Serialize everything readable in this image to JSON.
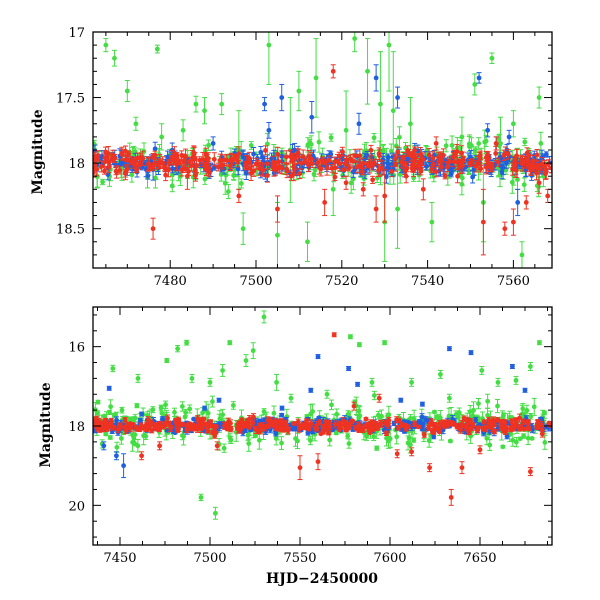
{
  "xaxis_title": "HJD−2450000",
  "chart_data": [
    {
      "type": "scatter",
      "panel": "top",
      "title": "",
      "xlabel": "",
      "ylabel": "Magnitude",
      "xlim": [
        7462,
        7569
      ],
      "ylim": [
        18.8,
        17.0
      ],
      "y_inverted": true,
      "xticks": [
        7480,
        7500,
        7520,
        7540,
        7560
      ],
      "yticks": [
        17,
        17.5,
        18,
        18.5
      ],
      "ytick_labels": [
        "17",
        "17.5",
        "18",
        "18.5"
      ],
      "baseline": 18.0,
      "series": [
        {
          "name": "green band",
          "color": "#44dd44",
          "scatter": 0.12,
          "count": 220,
          "outliers": [
            [
              7465,
              17.1,
              0.05
            ],
            [
              7467,
              17.2,
              0.06
            ],
            [
              7470,
              17.45,
              0.08
            ],
            [
              7472,
              17.7,
              0.05
            ],
            [
              7477,
              17.13,
              0.03
            ],
            [
              7478,
              17.8,
              0.1
            ],
            [
              7483,
              17.75,
              0.08
            ],
            [
              7486,
              17.55,
              0.06
            ],
            [
              7488,
              17.6,
              0.1
            ],
            [
              7492,
              17.55,
              0.08
            ],
            [
              7496,
              17.9,
              0.3
            ],
            [
              7497,
              18.5,
              0.12
            ],
            [
              7503,
              17.1,
              0.3
            ],
            [
              7505,
              18.55,
              0.25
            ],
            [
              7508,
              17.9,
              0.4
            ],
            [
              7510,
              17.45,
              0.15
            ],
            [
              7512,
              18.6,
              0.15
            ],
            [
              7514,
              17.35,
              0.3
            ],
            [
              7518,
              18.2,
              0.2
            ],
            [
              7521,
              17.75,
              0.3
            ],
            [
              7523,
              17.05,
              0.1
            ],
            [
              7526,
              17.3,
              0.25
            ],
            [
              7529,
              17.55,
              0.4
            ],
            [
              7530,
              18.45,
              0.3
            ],
            [
              7531,
              17.1,
              0.35
            ],
            [
              7532,
              17.6,
              0.45
            ],
            [
              7533,
              18.35,
              0.3
            ],
            [
              7536,
              17.7,
              0.2
            ],
            [
              7541,
              18.45,
              0.15
            ],
            [
              7548,
              17.8,
              0.15
            ],
            [
              7551,
              17.4,
              0.08
            ],
            [
              7553,
              18.3,
              0.3
            ],
            [
              7555,
              17.2,
              0.04
            ],
            [
              7557,
              17.85,
              0.2
            ],
            [
              7560,
              17.7,
              0.1
            ],
            [
              7562,
              18.7,
              0.1
            ],
            [
              7566,
              17.5,
              0.08
            ],
            [
              7567,
              18.1,
              0.08
            ]
          ]
        },
        {
          "name": "blue band",
          "color": "#1f5fe0",
          "scatter": 0.06,
          "count": 280,
          "outliers": [
            [
              7476,
              18.05,
              0.08
            ],
            [
              7490,
              17.85,
              0.05
            ],
            [
              7497,
              17.95,
              0.05
            ],
            [
              7502,
              17.55,
              0.05
            ],
            [
              7503,
              17.75,
              0.06
            ],
            [
              7506,
              17.5,
              0.1
            ],
            [
              7509,
              17.9,
              0.05
            ],
            [
              7513,
              17.65,
              0.12
            ],
            [
              7520,
              17.95,
              0.05
            ],
            [
              7524,
              17.7,
              0.08
            ],
            [
              7528,
              17.35,
              0.1
            ],
            [
              7533,
              17.5,
              0.08
            ],
            [
              7537,
              17.9,
              0.05
            ],
            [
              7543,
              18.05,
              0.05
            ],
            [
              7546,
              17.95,
              0.04
            ],
            [
              7552,
              17.35,
              0.04
            ],
            [
              7554,
              17.75,
              0.05
            ],
            [
              7556,
              17.85,
              0.05
            ],
            [
              7559,
              17.8,
              0.05
            ],
            [
              7561,
              18.3,
              0.1
            ],
            [
              7563,
              18.05,
              0.05
            ]
          ]
        },
        {
          "name": "red band",
          "color": "#ee3322",
          "scatter": 0.06,
          "count": 300,
          "outliers": [
            [
              7476,
              18.5,
              0.08
            ],
            [
              7484,
              18.1,
              0.1
            ],
            [
              7496,
              18.25,
              0.05
            ],
            [
              7505,
              18.35,
              0.1
            ],
            [
              7508,
              17.95,
              0.05
            ],
            [
              7511,
              17.95,
              0.05
            ],
            [
              7516,
              18.3,
              0.1
            ],
            [
              7518,
              17.3,
              0.05
            ],
            [
              7521,
              18.15,
              0.05
            ],
            [
              7525,
              18.2,
              0.05
            ],
            [
              7528,
              18.35,
              0.1
            ],
            [
              7530,
              18.25,
              0.2
            ],
            [
              7535,
              18.1,
              0.05
            ],
            [
              7539,
              18.2,
              0.08
            ],
            [
              7542,
              17.85,
              0.05
            ],
            [
              7547,
              18.1,
              0.05
            ],
            [
              7553,
              18.45,
              0.25
            ],
            [
              7556,
              17.85,
              0.05
            ],
            [
              7558,
              18.5,
              0.05
            ],
            [
              7560,
              18.45,
              0.1
            ],
            [
              7563,
              18.3,
              0.05
            ],
            [
              7566,
              18.15,
              0.08
            ],
            [
              7568,
              18.25,
              0.05
            ]
          ]
        }
      ]
    },
    {
      "type": "scatter",
      "panel": "bottom",
      "title": "",
      "xlabel": "HJD−2450000",
      "ylabel": "Magnitude",
      "xlim": [
        7435,
        7690
      ],
      "ylim": [
        21.0,
        15.0
      ],
      "y_inverted": true,
      "xticks": [
        7450,
        7500,
        7550,
        7600,
        7650
      ],
      "yticks": [
        16,
        18,
        20
      ],
      "ytick_labels": [
        "16",
        "18",
        "20"
      ],
      "baseline": 18.0,
      "series": [
        {
          "name": "green band",
          "color": "#44dd44",
          "scatter": 0.35,
          "count": 330,
          "outliers": [
            [
              7446,
              16.55,
              0.08
            ],
            [
              7460,
              16.8,
              0.1
            ],
            [
              7476,
              16.35,
              0.05
            ],
            [
              7482,
              16.05,
              0.08
            ],
            [
              7487,
              15.9,
              0.06
            ],
            [
              7490,
              16.8,
              0.1
            ],
            [
              7495,
              19.8,
              0.08
            ],
            [
              7500,
              16.9,
              0.1
            ],
            [
              7503,
              20.2,
              0.15
            ],
            [
              7507,
              16.6,
              0.15
            ],
            [
              7511,
              15.9,
              0.05
            ],
            [
              7520,
              16.35,
              0.15
            ],
            [
              7524,
              16.1,
              0.2
            ],
            [
              7530,
              15.25,
              0.15
            ],
            [
              7537,
              16.9,
              0.2
            ],
            [
              7545,
              17.3,
              0.1
            ],
            [
              7565,
              17.2,
              0.1
            ],
            [
              7578,
              15.75,
              0.05
            ],
            [
              7583,
              15.95,
              0.05
            ],
            [
              7590,
              16.9,
              0.1
            ],
            [
              7597,
              15.9,
              0.05
            ],
            [
              7612,
              16.9,
              0.1
            ],
            [
              7628,
              16.7,
              0.1
            ],
            [
              7633,
              17.3,
              0.1
            ],
            [
              7651,
              16.6,
              0.1
            ],
            [
              7660,
              16.9,
              0.1
            ],
            [
              7670,
              16.85,
              0.1
            ],
            [
              7678,
              16.5,
              0.1
            ],
            [
              7683,
              15.9,
              0.05
            ]
          ]
        },
        {
          "name": "blue band",
          "color": "#1f5fe0",
          "scatter": 0.12,
          "count": 300,
          "outliers": [
            [
              7441,
              18.5,
              0.1
            ],
            [
              7444,
              17.05,
              0.05
            ],
            [
              7448,
              18.75,
              0.1
            ],
            [
              7452,
              19.0,
              0.3
            ],
            [
              7462,
              17.7,
              0.05
            ],
            [
              7497,
              17.55,
              0.05
            ],
            [
              7505,
              17.35,
              0.05
            ],
            [
              7540,
              17.55,
              0.05
            ],
            [
              7556,
              17.1,
              0.05
            ],
            [
              7560,
              16.25,
              0.05
            ],
            [
              7577,
              16.55,
              0.05
            ],
            [
              7582,
              16.95,
              0.05
            ],
            [
              7606,
              17.35,
              0.05
            ],
            [
              7618,
              17.45,
              0.05
            ],
            [
              7633,
              16.05,
              0.05
            ],
            [
              7645,
              16.15,
              0.05
            ],
            [
              7668,
              16.5,
              0.05
            ],
            [
              7675,
              17.1,
              0.05
            ]
          ]
        },
        {
          "name": "red band",
          "color": "#ee3322",
          "scatter": 0.12,
          "count": 360,
          "outliers": [
            [
              7462,
              18.75,
              0.1
            ],
            [
              7472,
              18.5,
              0.1
            ],
            [
              7504,
              18.5,
              0.1
            ],
            [
              7550,
              19.05,
              0.3
            ],
            [
              7560,
              18.9,
              0.2
            ],
            [
              7569,
              15.7,
              0.05
            ],
            [
              7580,
              17.5,
              0.1
            ],
            [
              7594,
              17.3,
              0.1
            ],
            [
              7604,
              18.7,
              0.1
            ],
            [
              7612,
              18.65,
              0.1
            ],
            [
              7622,
              19.05,
              0.1
            ],
            [
              7634,
              19.8,
              0.2
            ],
            [
              7640,
              19.05,
              0.15
            ],
            [
              7650,
              18.6,
              0.1
            ],
            [
              7672,
              17.8,
              0.1
            ],
            [
              7678,
              19.15,
              0.1
            ]
          ]
        }
      ]
    }
  ]
}
